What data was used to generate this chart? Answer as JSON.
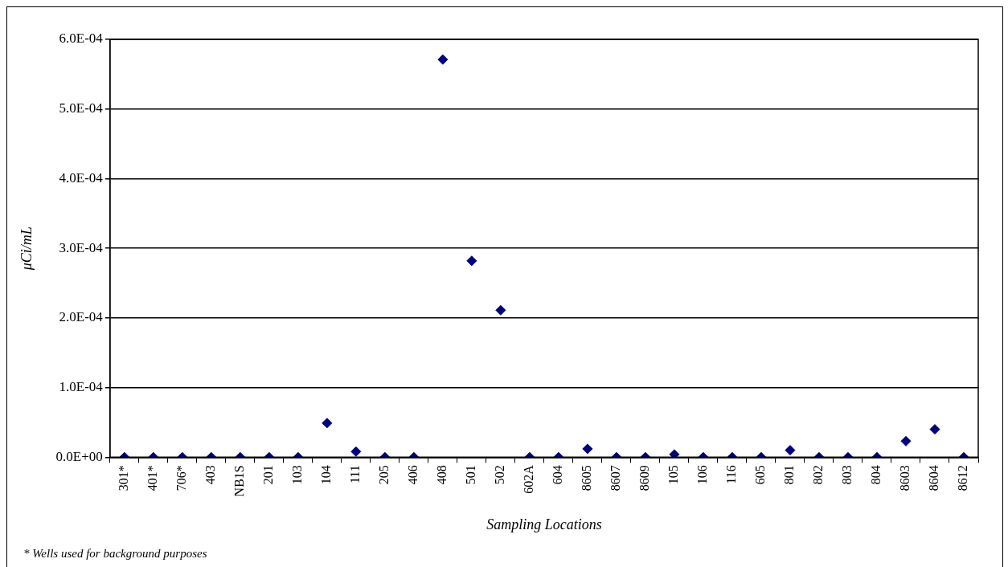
{
  "chart_data": {
    "type": "scatter",
    "xlabel": "Sampling Locations",
    "ylabel": "μCi/mL",
    "categories": [
      "301*",
      "401*",
      "706*",
      "403",
      "NB1S",
      "201",
      "103",
      "104",
      "111",
      "205",
      "406",
      "408",
      "501",
      "502",
      "602A",
      "604",
      "8605",
      "8607",
      "8609",
      "105",
      "106",
      "116",
      "605",
      "801",
      "802",
      "803",
      "804",
      "8603",
      "8604",
      "8612"
    ],
    "series": [
      {
        "color": "#000080",
        "values": [
          0,
          0,
          0,
          0,
          0,
          0,
          0,
          4.9e-05,
          8e-06,
          0,
          0,
          0.000571,
          0.000282,
          0.000211,
          0,
          0,
          1.2e-05,
          0,
          0,
          4e-06,
          0,
          0,
          0,
          1e-05,
          0,
          0,
          0,
          2.3e-05,
          4e-05,
          0
        ]
      }
    ],
    "ylim": [
      0,
      0.0006
    ],
    "yticks": [
      {
        "value": 0,
        "label": "0.0E+00"
      },
      {
        "value": 0.0001,
        "label": "1.0E-04"
      },
      {
        "value": 0.0002,
        "label": "2.0E-04"
      },
      {
        "value": 0.0003,
        "label": "3.0E-04"
      },
      {
        "value": 0.0004,
        "label": "4.0E-04"
      },
      {
        "value": 0.0005,
        "label": "5.0E-04"
      },
      {
        "value": 0.0006,
        "label": "6.0E-04"
      }
    ],
    "grid": "y",
    "legend": false,
    "marker": "diamond",
    "annotations": [
      "* Wells used for background purposes"
    ]
  }
}
